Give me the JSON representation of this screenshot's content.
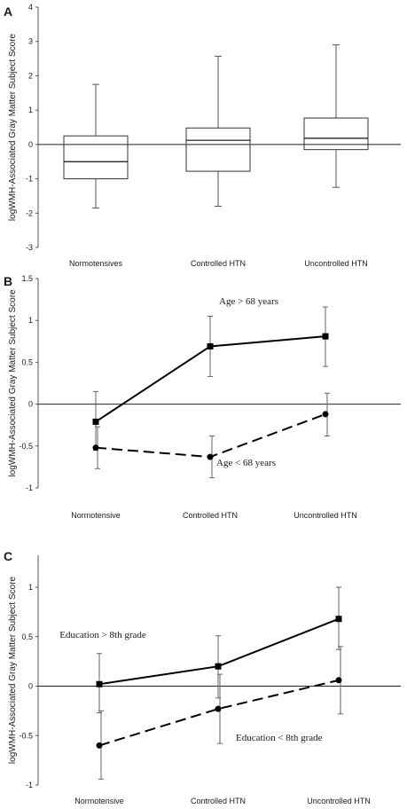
{
  "chart_data": [
    {
      "type": "box",
      "panel_label": "A",
      "ylabel": "logWMH-Associated Gray Matter Subject Score",
      "ylim": [
        -3,
        4
      ],
      "yticks": [
        "-3",
        "-2",
        "-1",
        "0",
        "1",
        "2",
        "3",
        "4"
      ],
      "categories": [
        "Normotensives",
        "Controlled HTN",
        "Uncontrolled HTN"
      ],
      "boxes": [
        {
          "min": -1.85,
          "q1": -1.0,
          "median": -0.5,
          "q3": 0.25,
          "max": 1.75
        },
        {
          "min": -1.8,
          "q1": -0.78,
          "median": 0.12,
          "q3": 0.48,
          "max": 2.57
        },
        {
          "min": -1.25,
          "q1": -0.15,
          "median": 0.18,
          "q3": 0.77,
          "max": 2.9
        }
      ]
    },
    {
      "type": "line",
      "panel_label": "B",
      "ylabel": "logWMH-Associated Gray Matter Subject Score",
      "ylim": [
        -1,
        1.5
      ],
      "yticks": [
        "-1",
        "-0.5",
        "0",
        "0.5",
        "1",
        "1.5"
      ],
      "categories": [
        "Normotensive",
        "Controlled HTN",
        "Uncontrolled HTN"
      ],
      "series": [
        {
          "label": "Age > 68 years",
          "style": "solid",
          "marker": "square",
          "values": [
            -0.21,
            0.69,
            0.81
          ],
          "err_low": [
            -0.55,
            0.33,
            0.45
          ],
          "err_high": [
            0.15,
            1.05,
            1.16
          ]
        },
        {
          "label": "Age < 68 years",
          "style": "dashed",
          "marker": "circle",
          "values": [
            -0.52,
            -0.63,
            -0.12
          ],
          "err_low": [
            -0.77,
            -0.88,
            -0.38
          ],
          "err_high": [
            -0.27,
            -0.38,
            0.13
          ]
        }
      ]
    },
    {
      "type": "line",
      "panel_label": "C",
      "ylabel": "logWMH-Associated Gray Matter Subject Score",
      "ylim": [
        -1,
        1.1
      ],
      "yticks": [
        "-1",
        "-0.5",
        "0",
        "0.5",
        "1"
      ],
      "categories": [
        "Normotensive",
        "Controlled HTN",
        "Uncontrolled HTN"
      ],
      "series": [
        {
          "label": "Education > 8th grade",
          "style": "solid",
          "marker": "square",
          "values": [
            0.02,
            0.2,
            0.68
          ],
          "err_low": [
            -0.27,
            -0.12,
            0.37
          ],
          "err_high": [
            0.33,
            0.51,
            1.0
          ]
        },
        {
          "label": "Education < 8th grade",
          "style": "dashed",
          "marker": "circle",
          "values": [
            -0.6,
            -0.23,
            0.06
          ],
          "err_low": [
            -0.94,
            -0.58,
            -0.28
          ],
          "err_high": [
            -0.25,
            0.12,
            0.4
          ]
        }
      ]
    }
  ]
}
